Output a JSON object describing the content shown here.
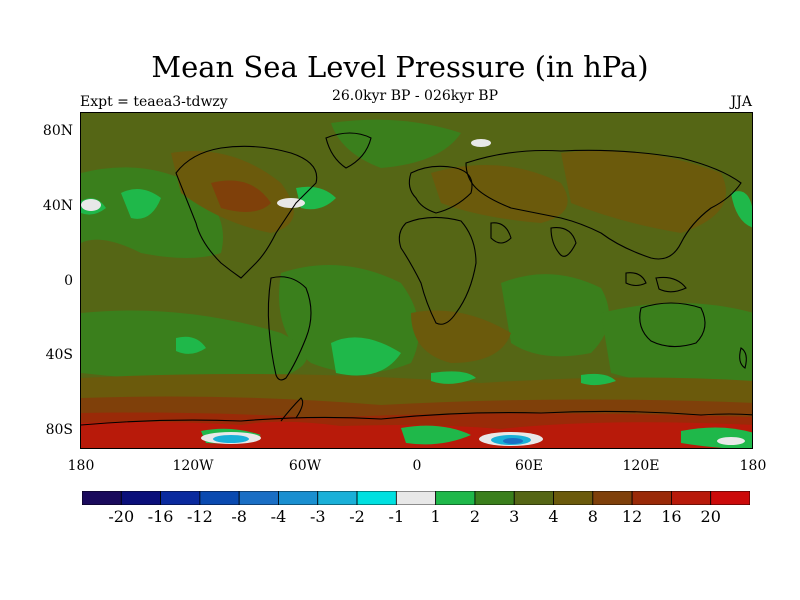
{
  "title": "Mean Sea Level Pressure (in hPa)",
  "subtitle": "26.0kyr BP - 026kyr BP",
  "left_label": "Expt = teaea3-tdwzy",
  "right_label": "JJA",
  "lat_labels": [
    "80N",
    "40N",
    "0",
    "40S",
    "80S"
  ],
  "lon_labels": [
    "180",
    "120W",
    "60W",
    "0",
    "60E",
    "120E",
    "180"
  ],
  "colorbar": {
    "levels": [
      "-20",
      "-16",
      "-12",
      "-8",
      "-4",
      "-3",
      "-2",
      "-1",
      "1",
      "2",
      "3",
      "4",
      "8",
      "12",
      "16",
      "20"
    ],
    "colors": [
      "#1a0a5c",
      "#0a0f7a",
      "#0a2a9e",
      "#0a4ab0",
      "#1a6ec4",
      "#1a8fd0",
      "#1ab0d8",
      "#00e0e0",
      "#e8e8e8",
      "#1fb84a",
      "#3a7f1c",
      "#556615",
      "#6b5a0c",
      "#7f400a",
      "#9a2a08",
      "#b81a0a",
      "#cc0a0a"
    ]
  },
  "map_colors": {
    "background": "#556615",
    "mid": "#3a7f1c",
    "positive": "#6b5a0c",
    "high": "#7f400a",
    "very_high": "#9a2a08",
    "extreme": "#b81a0a",
    "light": "#1fb84a",
    "white": "#e8e8e8",
    "cyan": "#1ab0d8",
    "blue": "#1a6ec4"
  }
}
